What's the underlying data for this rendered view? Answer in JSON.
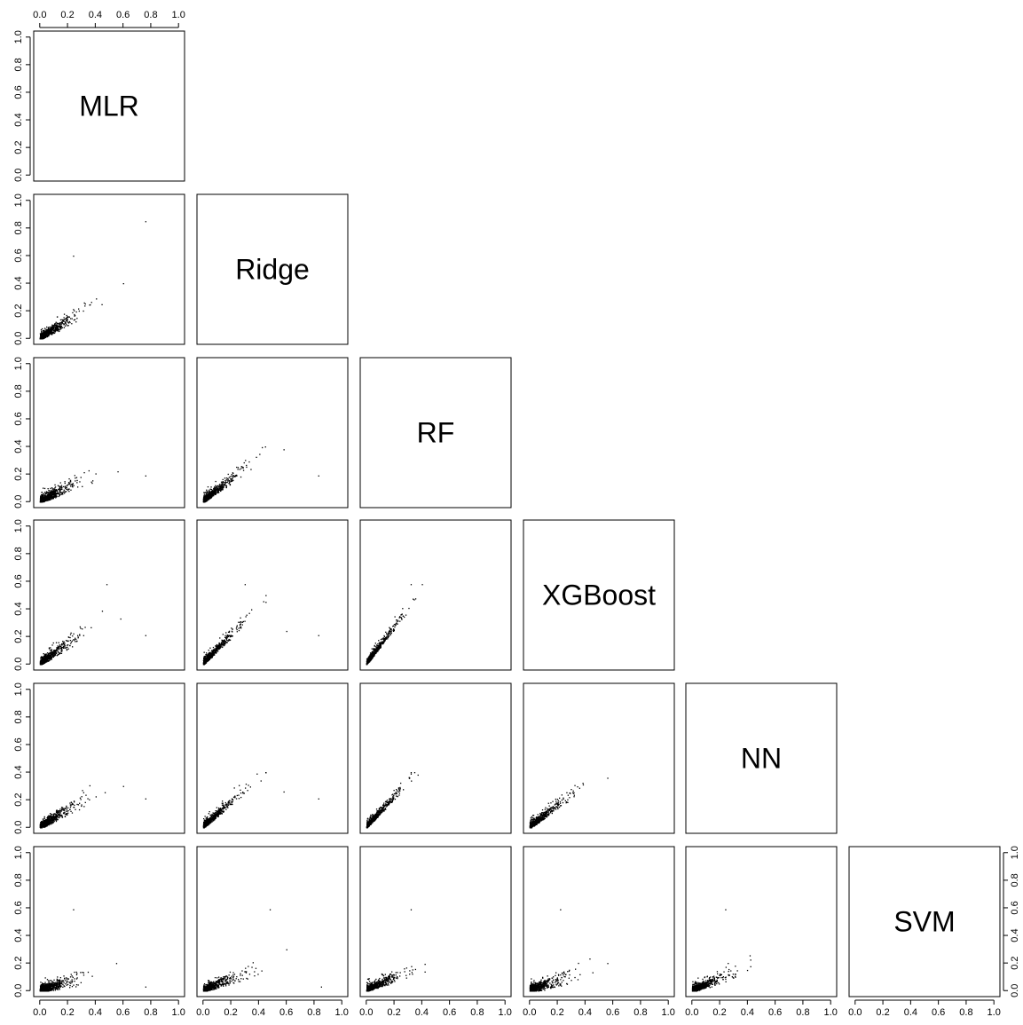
{
  "chart_data": {
    "type": "scatter",
    "matrix": "pairs",
    "variables": [
      "MLR",
      "Ridge",
      "RF",
      "XGBoost",
      "NN",
      "SVM"
    ],
    "axis_range": [
      0,
      1
    ],
    "ticks": [
      0.0,
      0.2,
      0.4,
      0.6,
      0.8,
      1.0
    ],
    "tick_labels": [
      "0.0",
      "0.2",
      "0.4",
      "0.6",
      "0.8",
      "1.0"
    ],
    "grid": false,
    "legend": "none",
    "point_color": "#000000",
    "panels": [
      {
        "row": "Ridge",
        "col": "MLR",
        "spread": 0.45,
        "slope": 0.62,
        "cap_x": 0.45,
        "cap_y": 0.42,
        "outliers": [
          [
            0.76,
            0.85
          ],
          [
            0.24,
            0.6
          ],
          [
            0.6,
            0.4
          ]
        ]
      },
      {
        "row": "RF",
        "col": "MLR",
        "spread": 0.45,
        "slope": 0.5,
        "cap_x": 0.55,
        "cap_y": 0.4,
        "outliers": [
          [
            0.76,
            0.19
          ],
          [
            0.56,
            0.22
          ]
        ]
      },
      {
        "row": "RF",
        "col": "Ridge",
        "spread": 0.4,
        "slope": 0.8,
        "cap_x": 0.45,
        "cap_y": 0.4,
        "outliers": [
          [
            0.83,
            0.19
          ],
          [
            0.58,
            0.38
          ]
        ]
      },
      {
        "row": "XGBoost",
        "col": "MLR",
        "spread": 0.45,
        "slope": 0.72,
        "cap_x": 0.55,
        "cap_y": 0.5,
        "outliers": [
          [
            0.76,
            0.21
          ],
          [
            0.48,
            0.58
          ],
          [
            0.58,
            0.33
          ]
        ]
      },
      {
        "row": "XGBoost",
        "col": "Ridge",
        "spread": 0.32,
        "slope": 1.05,
        "cap_x": 0.45,
        "cap_y": 0.5,
        "outliers": [
          [
            0.83,
            0.21
          ],
          [
            0.6,
            0.24
          ],
          [
            0.3,
            0.58
          ]
        ]
      },
      {
        "row": "XGBoost",
        "col": "RF",
        "spread": 0.28,
        "slope": 1.35,
        "cap_x": 0.4,
        "cap_y": 0.58,
        "outliers": [
          [
            0.32,
            0.58
          ]
        ]
      },
      {
        "row": "NN",
        "col": "MLR",
        "spread": 0.45,
        "slope": 0.62,
        "cap_x": 0.55,
        "cap_y": 0.4,
        "outliers": [
          [
            0.76,
            0.21
          ],
          [
            0.6,
            0.3
          ]
        ]
      },
      {
        "row": "NN",
        "col": "Ridge",
        "spread": 0.32,
        "slope": 0.9,
        "cap_x": 0.45,
        "cap_y": 0.4,
        "outliers": [
          [
            0.83,
            0.21
          ],
          [
            0.58,
            0.26
          ]
        ]
      },
      {
        "row": "NN",
        "col": "RF",
        "spread": 0.28,
        "slope": 1.1,
        "cap_x": 0.4,
        "cap_y": 0.4,
        "outliers": [
          [
            0.32,
            0.4
          ]
        ]
      },
      {
        "row": "NN",
        "col": "XGBoost",
        "spread": 0.38,
        "slope": 0.78,
        "cap_x": 0.58,
        "cap_y": 0.4,
        "outliers": [
          [
            0.56,
            0.36
          ]
        ]
      },
      {
        "row": "SVM",
        "col": "MLR",
        "spread": 0.5,
        "slope": 0.3,
        "cap_x": 0.6,
        "cap_y": 0.42,
        "outliers": [
          [
            0.24,
            0.59
          ],
          [
            0.76,
            0.03
          ],
          [
            0.55,
            0.2
          ]
        ]
      },
      {
        "row": "SVM",
        "col": "Ridge",
        "spread": 0.4,
        "slope": 0.4,
        "cap_x": 0.5,
        "cap_y": 0.42,
        "outliers": [
          [
            0.48,
            0.59
          ],
          [
            0.85,
            0.03
          ],
          [
            0.6,
            0.3
          ]
        ]
      },
      {
        "row": "SVM",
        "col": "RF",
        "spread": 0.36,
        "slope": 0.45,
        "cap_x": 0.42,
        "cap_y": 0.42,
        "outliers": [
          [
            0.32,
            0.59
          ]
        ]
      },
      {
        "row": "SVM",
        "col": "XGBoost",
        "spread": 0.55,
        "slope": 0.35,
        "cap_x": 0.6,
        "cap_y": 0.42,
        "outliers": [
          [
            0.22,
            0.59
          ],
          [
            0.56,
            0.2
          ]
        ]
      },
      {
        "row": "SVM",
        "col": "NN",
        "spread": 0.4,
        "slope": 0.4,
        "cap_x": 0.42,
        "cap_y": 0.42,
        "outliers": [
          [
            0.24,
            0.59
          ]
        ]
      }
    ]
  }
}
